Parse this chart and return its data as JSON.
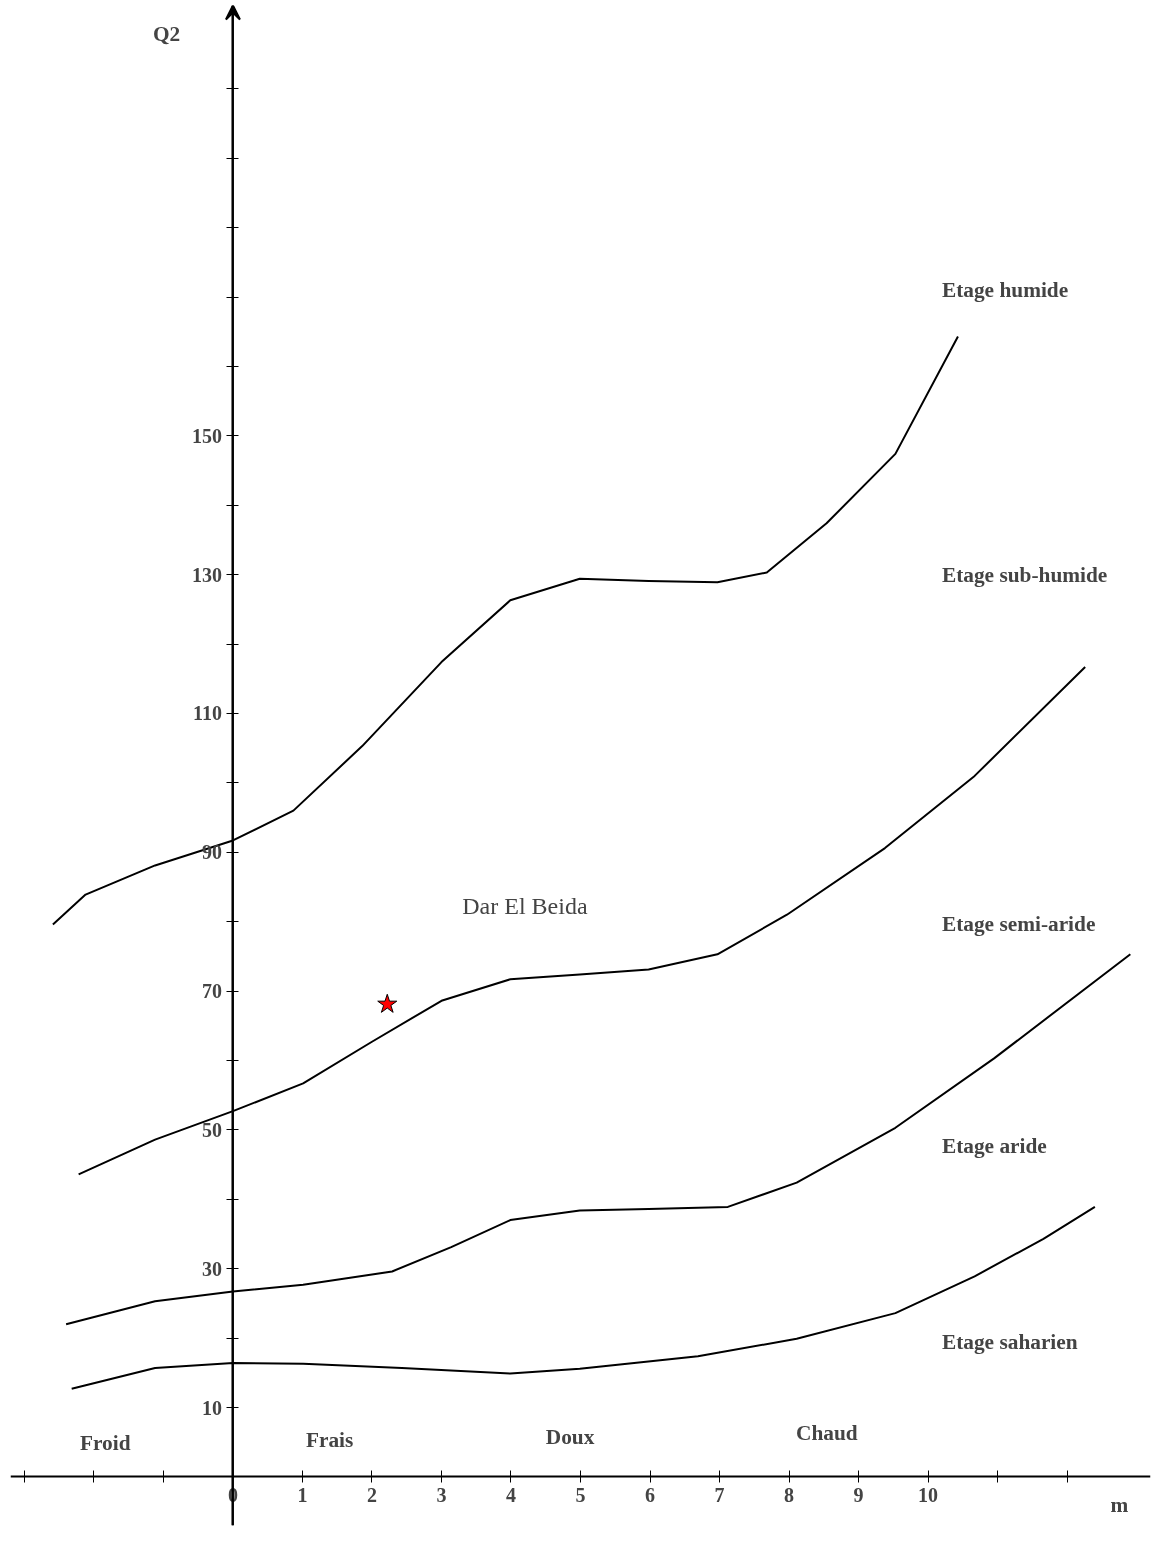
{
  "chart_data": {
    "type": "line",
    "xlabel": "m",
    "ylabel": "Q2",
    "xlim": [
      -3.2,
      13.2
    ],
    "ylim": [
      -7,
      212
    ],
    "xticks": [
      {
        "value": -3,
        "label": null
      },
      {
        "value": -2,
        "label": null
      },
      {
        "value": -1,
        "label": null
      },
      0,
      1,
      2,
      3,
      4,
      5,
      6,
      7,
      8,
      9,
      10,
      {
        "value": 11,
        "label": null
      },
      {
        "value": 12,
        "label": null
      }
    ],
    "yticks": [
      10,
      {
        "value": 20,
        "label": null
      },
      30,
      {
        "value": 40,
        "label": null
      },
      50,
      {
        "value": 60,
        "label": null
      },
      70,
      {
        "value": 80,
        "label": null
      },
      90,
      {
        "value": 100,
        "label": null
      },
      110,
      {
        "value": 120,
        "label": null
      },
      130,
      {
        "value": 140,
        "label": null
      },
      150,
      {
        "value": 160,
        "label": null
      },
      {
        "value": 170,
        "label": null
      },
      {
        "value": 180,
        "label": null
      },
      {
        "value": 190,
        "label": null
      },
      {
        "value": 200,
        "label": null
      }
    ],
    "grid": false,
    "marker": "none",
    "line_style": "solid",
    "series": [
      {
        "color": "#000000",
        "x": [
          -2.59,
          -2.12,
          -1.12,
          0,
          0.87,
          1.86,
          3,
          3.99,
          4.99,
          5.98,
          6.97,
          7.68,
          8.54,
          9.53,
          10.43
        ],
        "values": [
          79.6,
          83.9,
          88.1,
          91.7,
          96,
          105.3,
          117.4,
          126.3,
          129.4,
          129.1,
          128.9,
          130.3,
          137.4,
          147.4,
          164.3
        ]
      },
      {
        "color": "#000000",
        "x": [
          -2.22,
          -1.12,
          0,
          1.01,
          2.0,
          3,
          3.99,
          4.99,
          5.98,
          6.97,
          7.97,
          9.38,
          10.67,
          12.26
        ],
        "values": [
          43.6,
          48.6,
          52.7,
          56.7,
          62.7,
          68.6,
          71.7,
          72.4,
          73.1,
          75.3,
          81,
          90.6,
          101,
          116.7
        ]
      },
      {
        "color": "#000000",
        "x": [
          -2.4,
          -1.12,
          0,
          1.01,
          2.29,
          3.14,
          3.99,
          4.99,
          5.98,
          7.12,
          8.11,
          9.53,
          10.95,
          12.91
        ],
        "values": [
          22,
          25.3,
          26.7,
          27.7,
          29.6,
          33.1,
          37,
          38.4,
          38.6,
          38.9,
          42.4,
          50.3,
          60.3,
          75.3
        ]
      },
      {
        "color": "#000000",
        "x": [
          -2.32,
          -1.12,
          0,
          1.01,
          2.43,
          3.99,
          4.99,
          6.69,
          8.11,
          9.53,
          10.67,
          11.66,
          12.4
        ],
        "values": [
          12.7,
          15.7,
          16.4,
          16.3,
          15.7,
          14.9,
          15.6,
          17.4,
          19.9,
          23.6,
          28.9,
          34.3,
          38.9
        ]
      },
      {
        "type": "scatter",
        "marker": "star",
        "name": "Dar El Beida",
        "color": "#ff0000",
        "x": [
          2.22
        ],
        "values": [
          68.1
        ]
      }
    ],
    "annotations": [
      "Etage humide",
      "Etage sub-humide",
      "Etage semi-aride",
      "Etage aride",
      "Etage saharien",
      "Froid",
      "Frais",
      "Doux",
      "Chaud"
    ]
  }
}
